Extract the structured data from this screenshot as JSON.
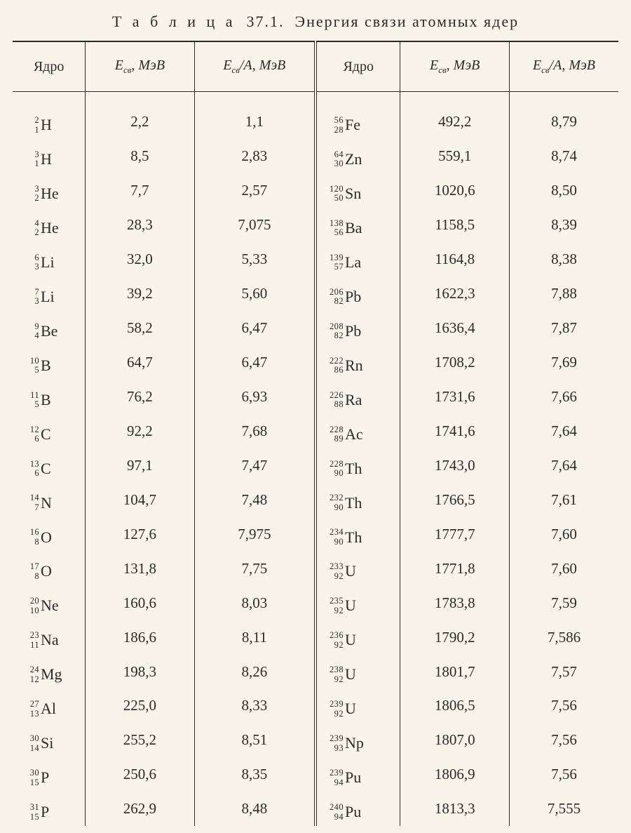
{
  "title_prefix": "Т а б л и ц а",
  "title_number": "37.1.",
  "title_text": "Энергия связи атомных ядер",
  "table": {
    "type": "table",
    "background_color": "#f8f4ea",
    "text_color": "#2a2a2a",
    "border_color": "#2a2a2a",
    "font_family": "Times New Roman",
    "header_fontsize": 20,
    "cell_fontsize": 21,
    "nuclide_symbol_fontsize": 22,
    "nuclide_az_fontsize": 12.5,
    "double_rule_after_col_index": 2,
    "columns": [
      {
        "label_plain": "Ядро",
        "italic": false,
        "align": "left"
      },
      {
        "label_html": "<i>E</i><sub>св</sub>, МэВ",
        "italic": true,
        "align": "center"
      },
      {
        "label_html": "<i>E</i><sub>св</sub>/<i>A</i>, МэВ",
        "italic": true,
        "align": "center"
      },
      {
        "label_plain": "Ядро",
        "italic": false,
        "align": "left"
      },
      {
        "label_html": "<i>E</i><sub>св</sub>, МэВ",
        "italic": true,
        "align": "center"
      },
      {
        "label_html": "<i>E</i><sub>св</sub>/<i>A</i>, МэВ",
        "italic": true,
        "align": "center"
      }
    ],
    "rows": [
      {
        "L": {
          "A": "2",
          "Z": "1",
          "sym": "H"
        },
        "Le": "2,2",
        "Lea": "1,1",
        "R": {
          "A": "56",
          "Z": "28",
          "sym": "Fe"
        },
        "Re": "492,2",
        "Rea": "8,79"
      },
      {
        "L": {
          "A": "3",
          "Z": "1",
          "sym": "H"
        },
        "Le": "8,5",
        "Lea": "2,83",
        "R": {
          "A": "64",
          "Z": "30",
          "sym": "Zn"
        },
        "Re": "559,1",
        "Rea": "8,74"
      },
      {
        "L": {
          "A": "3",
          "Z": "2",
          "sym": "He"
        },
        "Le": "7,7",
        "Lea": "2,57",
        "R": {
          "A": "120",
          "Z": "50",
          "sym": "Sn"
        },
        "Re": "1020,6",
        "Rea": "8,50"
      },
      {
        "L": {
          "A": "4",
          "Z": "2",
          "sym": "He"
        },
        "Le": "28,3",
        "Lea": "7,075",
        "R": {
          "A": "138",
          "Z": "56",
          "sym": "Ba"
        },
        "Re": "1158,5",
        "Rea": "8,39"
      },
      {
        "L": {
          "A": "6",
          "Z": "3",
          "sym": "Li"
        },
        "Le": "32,0",
        "Lea": "5,33",
        "R": {
          "A": "139",
          "Z": "57",
          "sym": "La"
        },
        "Re": "1164,8",
        "Rea": "8,38"
      },
      {
        "L": {
          "A": "7",
          "Z": "3",
          "sym": "Li"
        },
        "Le": "39,2",
        "Lea": "5,60",
        "R": {
          "A": "206",
          "Z": "82",
          "sym": "Pb"
        },
        "Re": "1622,3",
        "Rea": "7,88"
      },
      {
        "L": {
          "A": "9",
          "Z": "4",
          "sym": "Be"
        },
        "Le": "58,2",
        "Lea": "6,47",
        "R": {
          "A": "208",
          "Z": "82",
          "sym": "Pb"
        },
        "Re": "1636,4",
        "Rea": "7,87"
      },
      {
        "L": {
          "A": "10",
          "Z": "5",
          "sym": "B"
        },
        "Le": "64,7",
        "Lea": "6,47",
        "R": {
          "A": "222",
          "Z": "86",
          "sym": "Rn"
        },
        "Re": "1708,2",
        "Rea": "7,69"
      },
      {
        "L": {
          "A": "11",
          "Z": "5",
          "sym": "B"
        },
        "Le": "76,2",
        "Lea": "6,93",
        "R": {
          "A": "226",
          "Z": "88",
          "sym": "Ra"
        },
        "Re": "1731,6",
        "Rea": "7,66"
      },
      {
        "L": {
          "A": "12",
          "Z": "6",
          "sym": "C"
        },
        "Le": "92,2",
        "Lea": "7,68",
        "R": {
          "A": "228",
          "Z": "89",
          "sym": "Ac"
        },
        "Re": "1741,6",
        "Rea": "7,64"
      },
      {
        "L": {
          "A": "13",
          "Z": "6",
          "sym": "C"
        },
        "Le": "97,1",
        "Lea": "7,47",
        "R": {
          "A": "228",
          "Z": "90",
          "sym": "Th"
        },
        "Re": "1743,0",
        "Rea": "7,64"
      },
      {
        "L": {
          "A": "14",
          "Z": "7",
          "sym": "N"
        },
        "Le": "104,7",
        "Lea": "7,48",
        "R": {
          "A": "232",
          "Z": "90",
          "sym": "Th"
        },
        "Re": "1766,5",
        "Rea": "7,61"
      },
      {
        "L": {
          "A": "16",
          "Z": "8",
          "sym": "O"
        },
        "Le": "127,6",
        "Lea": "7,975",
        "R": {
          "A": "234",
          "Z": "90",
          "sym": "Th"
        },
        "Re": "1777,7",
        "Rea": "7,60"
      },
      {
        "L": {
          "A": "17",
          "Z": "8",
          "sym": "O"
        },
        "Le": "131,8",
        "Lea": "7,75",
        "R": {
          "A": "233",
          "Z": "92",
          "sym": "U"
        },
        "Re": "1771,8",
        "Rea": "7,60"
      },
      {
        "L": {
          "A": "20",
          "Z": "10",
          "sym": "Ne"
        },
        "Le": "160,6",
        "Lea": "8,03",
        "R": {
          "A": "235",
          "Z": "92",
          "sym": "U"
        },
        "Re": "1783,8",
        "Rea": "7,59"
      },
      {
        "L": {
          "A": "23",
          "Z": "11",
          "sym": "Na"
        },
        "Le": "186,6",
        "Lea": "8,11",
        "R": {
          "A": "236",
          "Z": "92",
          "sym": "U"
        },
        "Re": "1790,2",
        "Rea": "7,586"
      },
      {
        "L": {
          "A": "24",
          "Z": "12",
          "sym": "Mg"
        },
        "Le": "198,3",
        "Lea": "8,26",
        "R": {
          "A": "238",
          "Z": "92",
          "sym": "U"
        },
        "Re": "1801,7",
        "Rea": "7,57"
      },
      {
        "L": {
          "A": "27",
          "Z": "13",
          "sym": "Al"
        },
        "Le": "225,0",
        "Lea": "8,33",
        "R": {
          "A": "239",
          "Z": "92",
          "sym": "U"
        },
        "Re": "1806,5",
        "Rea": "7,56"
      },
      {
        "L": {
          "A": "30",
          "Z": "14",
          "sym": "Si"
        },
        "Le": "255,2",
        "Lea": "8,51",
        "R": {
          "A": "239",
          "Z": "93",
          "sym": "Np"
        },
        "Re": "1807,0",
        "Rea": "7,56"
      },
      {
        "L": {
          "A": "30",
          "Z": "15",
          "sym": "P"
        },
        "Le": "250,6",
        "Lea": "8,35",
        "R": {
          "A": "239",
          "Z": "94",
          "sym": "Pu"
        },
        "Re": "1806,9",
        "Rea": "7,56"
      },
      {
        "L": {
          "A": "31",
          "Z": "15",
          "sym": "P"
        },
        "Le": "262,9",
        "Lea": "8,48",
        "R": {
          "A": "240",
          "Z": "94",
          "sym": "Pu"
        },
        "Re": "1813,3",
        "Rea": "7,555"
      }
    ]
  }
}
